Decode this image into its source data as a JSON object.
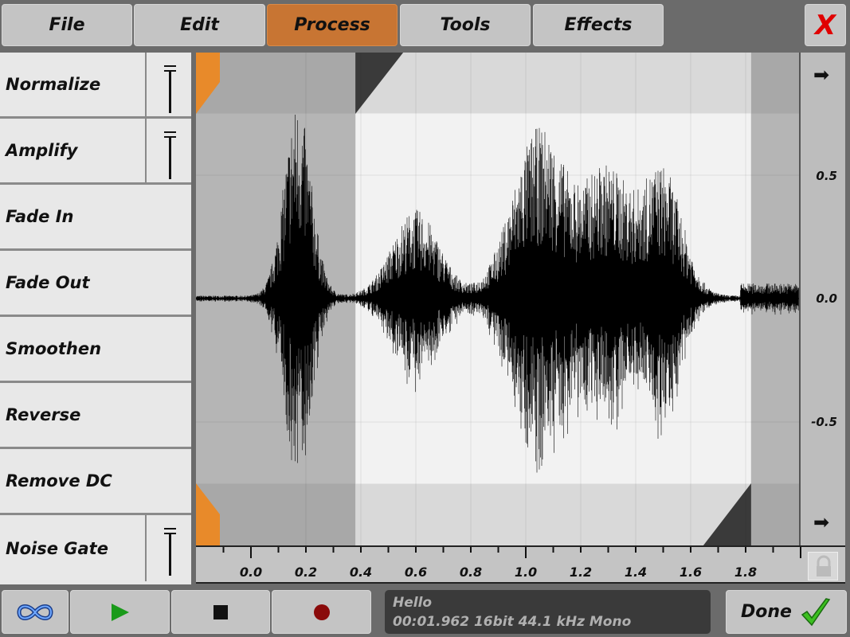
{
  "menu": {
    "items": [
      {
        "label": "File"
      },
      {
        "label": "Edit"
      },
      {
        "label": "Process",
        "active": true
      },
      {
        "label": "Tools"
      },
      {
        "label": "Effects"
      }
    ],
    "close_label": "X"
  },
  "process_panel": {
    "items": [
      {
        "label": "Normalize",
        "slider": true
      },
      {
        "label": "Amplify",
        "slider": true
      },
      {
        "label": "Fade In"
      },
      {
        "label": "Fade Out"
      },
      {
        "label": "Smoothen"
      },
      {
        "label": "Reverse"
      },
      {
        "label": "Remove DC"
      },
      {
        "label": "Noise Gate",
        "slider": true
      }
    ]
  },
  "waveform": {
    "selection_start_s": 0.38,
    "selection_end_s": 1.82,
    "duration_s": 1.962,
    "y_labels": [
      "0.5",
      "0.0",
      "-0.5"
    ],
    "x_labels": [
      "0.0",
      "0.2",
      "0.4",
      "0.6",
      "0.8",
      "1.0",
      "1.2",
      "1.4",
      "1.6",
      "1.8"
    ],
    "colors": {
      "marker": "#e88a2a",
      "selection": "#f2f2f2",
      "unselected": "#b5b5b5"
    }
  },
  "transport": {
    "loop_icon": "infinity-icon",
    "play_icon": "play-icon",
    "stop_icon": "stop-icon",
    "record_icon": "record-icon"
  },
  "info": {
    "name": "Hello",
    "details": "00:01.962 16bit 44.1 kHz Mono"
  },
  "done": {
    "label": "Done"
  }
}
